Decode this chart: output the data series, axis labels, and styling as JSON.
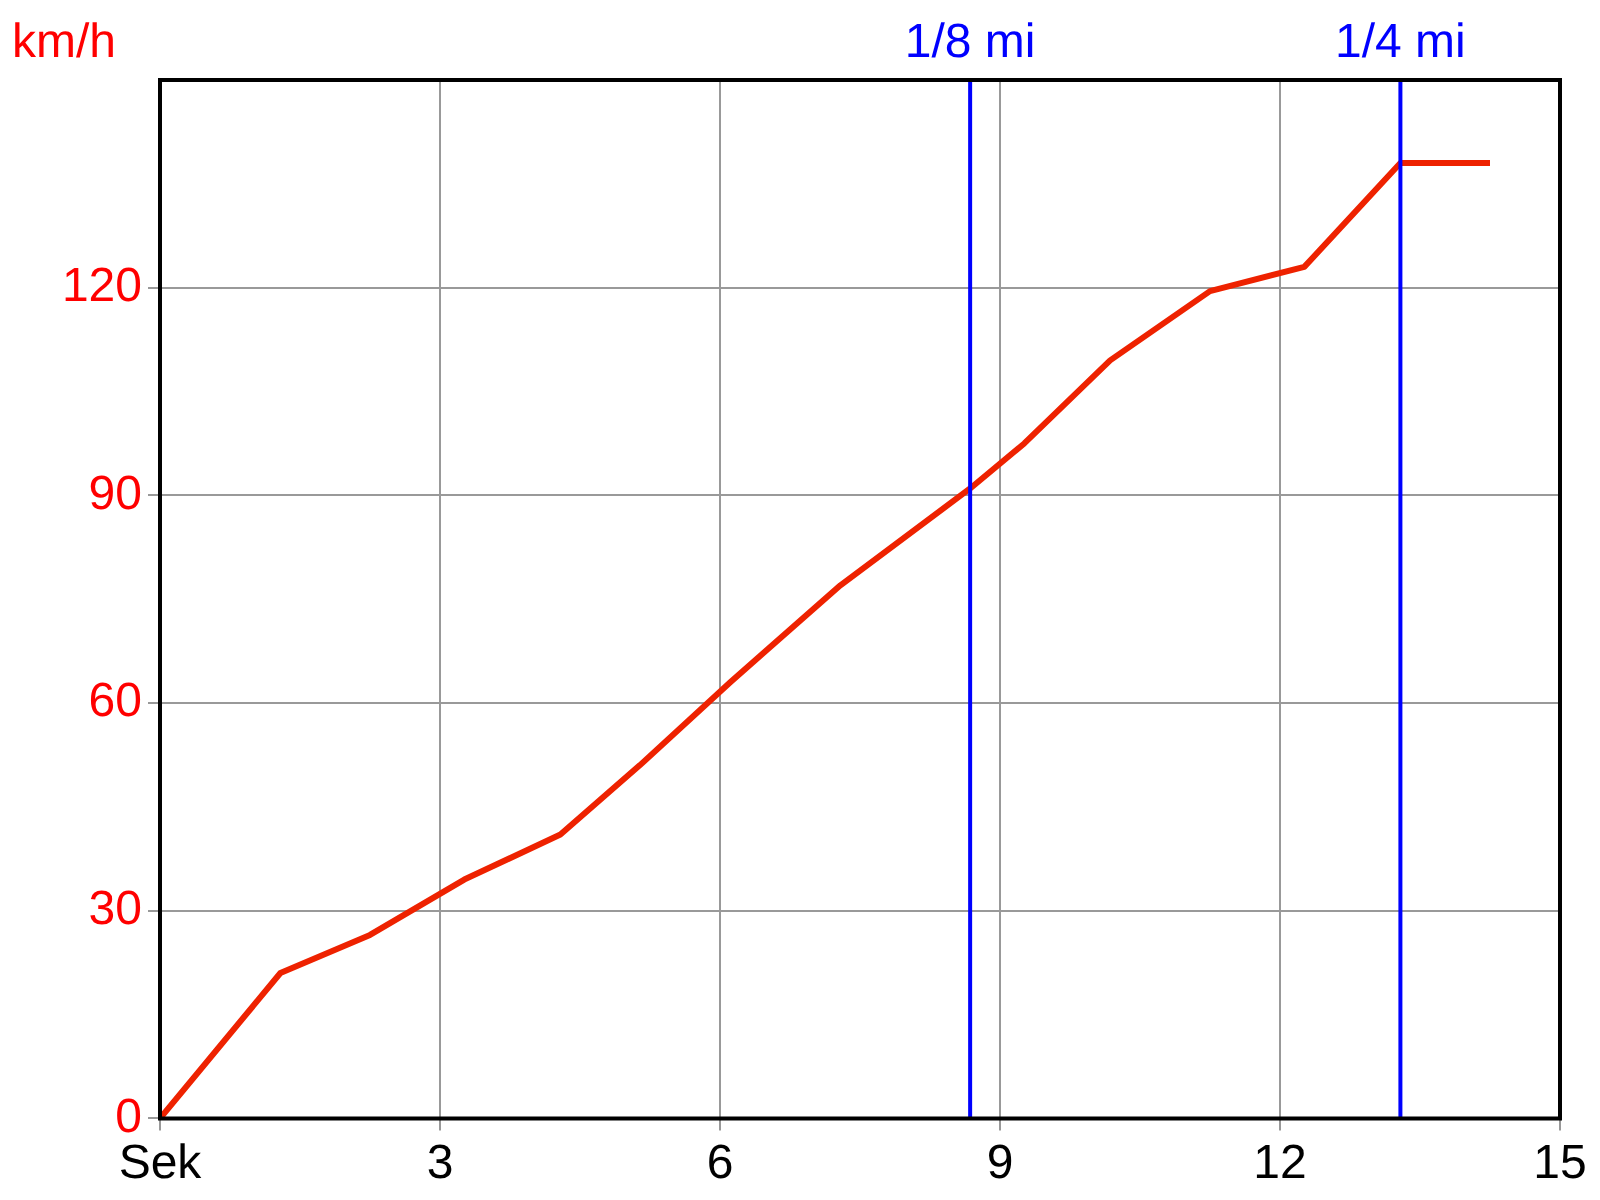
{
  "chart_data": {
    "type": "line",
    "ylabel": "km/h",
    "x": [
      0,
      1.29,
      2.25,
      3.26,
      4.29,
      5.14,
      6.11,
      7.29,
      8.68,
      9.26,
      10.18,
      11.25,
      12.26,
      13.29,
      14.25
    ],
    "series": [
      {
        "color": "#ee2200",
        "values": [
          0,
          21,
          26.5,
          34.5,
          41,
          51,
          63,
          77,
          91,
          97.5,
          109.5,
          119.5,
          123,
          138,
          138
        ]
      }
    ],
    "xlim": [
      0,
      15
    ],
    "xticks": [
      {
        "value": 0,
        "label": "Sek"
      },
      3,
      6,
      9,
      12,
      15
    ],
    "ylim": [
      0,
      150
    ],
    "yticks": [
      0,
      30,
      60,
      90,
      120
    ],
    "ref_lines": [
      {
        "axis": "x",
        "value": 8.68,
        "label": "1/8 mi",
        "color": "#0000ff"
      },
      {
        "axis": "x",
        "value": 13.29,
        "label": "1/4 mi",
        "color": "#0000ff"
      }
    ],
    "grid": true,
    "legend": false,
    "marker": "none",
    "line_style": "solid"
  }
}
